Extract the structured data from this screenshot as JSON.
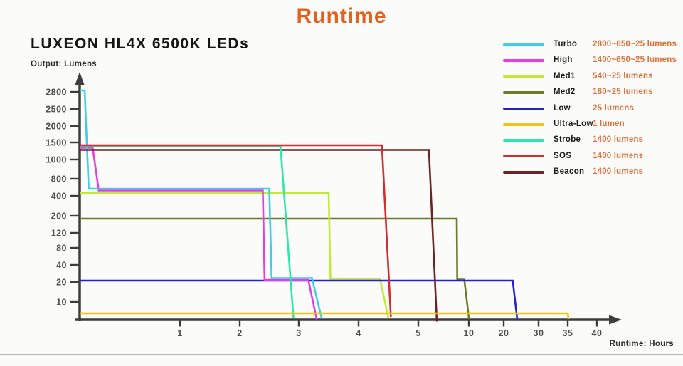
{
  "page": {
    "title": "Runtime",
    "subtitle": "LUXEON HL4X 6500K LEDs",
    "y_axis_label": "Output: Lumens",
    "x_axis_label": "Runtime: Hours"
  },
  "colors": {
    "title_orange": "#e2611e",
    "legend_value_orange": "#dd7038",
    "axis": "#3d3d3d",
    "tick_text": "#4f4f4f"
  },
  "chart_data": {
    "type": "line",
    "title": "Runtime",
    "subtitle": "LUXEON HL4X 6500K LEDs",
    "xlabel": "Runtime: Hours",
    "ylabel": "Output: Lumens",
    "grid": false,
    "legend_position": "top-right",
    "x_unit": "hours",
    "y_unit": "lumens",
    "x_ticks": [
      1,
      2,
      3,
      4,
      5,
      10,
      20,
      30,
      35,
      40
    ],
    "y_ticks": [
      2800,
      2500,
      2000,
      1500,
      1000,
      800,
      400,
      200,
      120,
      80,
      40,
      20,
      10
    ],
    "series": [
      {
        "name": "Turbo",
        "legend_value": "2800~650~25 lumens",
        "color": "#3ecfe3",
        "points": [
          [
            0,
            2800
          ],
          [
            0.05,
            2800
          ],
          [
            0.09,
            650
          ],
          [
            2.5,
            650
          ],
          [
            2.54,
            25
          ],
          [
            3.22,
            25
          ],
          [
            3.38,
            0
          ]
        ]
      },
      {
        "name": "High",
        "legend_value": "1400~650~25 lumens",
        "color": "#e83ae8",
        "points": [
          [
            0,
            1400
          ],
          [
            0.13,
            1400
          ],
          [
            0.19,
            650
          ],
          [
            2.39,
            650
          ],
          [
            2.42,
            25
          ],
          [
            3.16,
            25
          ],
          [
            3.3,
            0
          ]
        ]
      },
      {
        "name": "Med1",
        "legend_value": "540~25 lumens",
        "color": "#c3e83c",
        "points": [
          [
            0,
            540
          ],
          [
            3.5,
            540
          ],
          [
            3.53,
            25
          ],
          [
            4.36,
            25
          ],
          [
            4.5,
            0
          ]
        ]
      },
      {
        "name": "Med2",
        "legend_value": "180~25 lumens",
        "color": "#6e7a28",
        "points": [
          [
            0,
            180
          ],
          [
            8.8,
            180
          ],
          [
            8.85,
            25
          ],
          [
            9.55,
            25
          ],
          [
            10.05,
            0
          ]
        ]
      },
      {
        "name": "Low",
        "legend_value": "25 lumens",
        "color": "#2323c8",
        "points": [
          [
            0,
            25
          ],
          [
            22.6,
            25
          ],
          [
            23.9,
            0
          ]
        ]
      },
      {
        "name": "Ultra-Low",
        "legend_value": "1 lumen",
        "color": "#eac41f",
        "points": [
          [
            0,
            1
          ],
          [
            35,
            1
          ],
          [
            35.15,
            0
          ]
        ]
      },
      {
        "name": "Strobe",
        "legend_value": "1400 lumens",
        "color": "#2ce8ab",
        "points": [
          [
            0,
            1400
          ],
          [
            2.69,
            1400
          ],
          [
            2.91,
            0
          ]
        ]
      },
      {
        "name": "SOS",
        "legend_value": "1400 lumens",
        "color": "#d02f2f",
        "points": [
          [
            0,
            1400
          ],
          [
            4.39,
            1400
          ],
          [
            4.54,
            0
          ]
        ]
      },
      {
        "name": "Beacon",
        "legend_value": "1400 lumens",
        "color": "#6b2323",
        "points": [
          [
            0,
            1400
          ],
          [
            6.05,
            1400
          ],
          [
            6.83,
            0
          ]
        ]
      }
    ]
  }
}
